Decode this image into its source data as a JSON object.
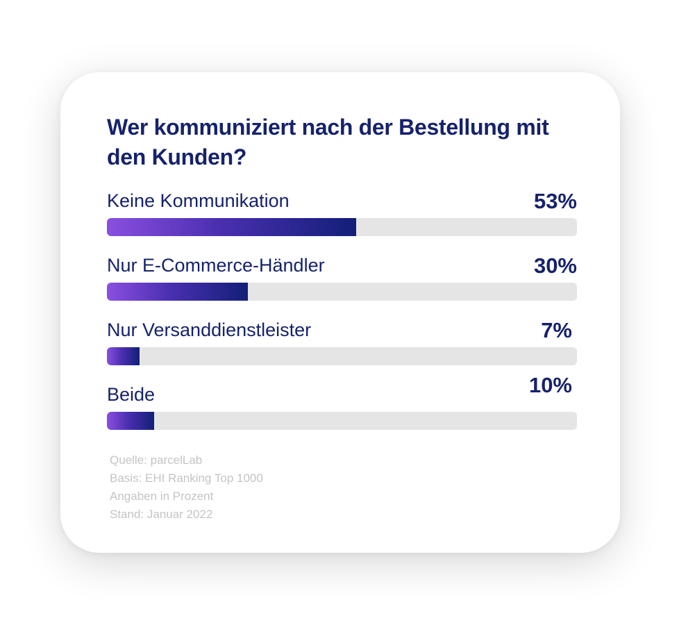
{
  "chart_data": {
    "type": "bar",
    "orientation": "horizontal",
    "title": "Wer kommuniziert nach der Bestellung mit den Kunden?",
    "categories": [
      "Keine Kommunikation",
      "Nur E-Commerce-Händler",
      "Nur Versanddienstleister",
      "Beide"
    ],
    "values": [
      53,
      30,
      7,
      10
    ],
    "value_labels": [
      "53%",
      "30%",
      "7%",
      "10%"
    ],
    "xlim": [
      0,
      100
    ],
    "unit": "%",
    "colors": {
      "bar_start": "#8a4fe0",
      "bar_end": "#121f78",
      "track": "#e5e5e5",
      "text": "#16226b"
    }
  },
  "footnotes": [
    "Quelle: parcelLab",
    "Basis: EHI Ranking Top 1000",
    "Angaben in Prozent",
    "Stand: Januar 2022"
  ]
}
